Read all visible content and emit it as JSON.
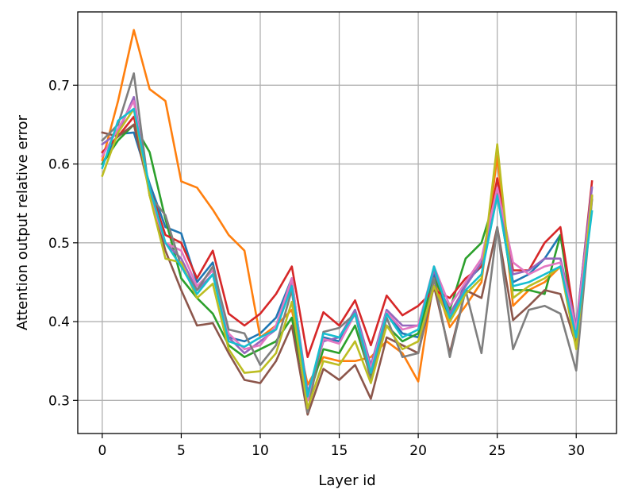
{
  "chart_data": {
    "type": "line",
    "title": "",
    "xlabel": "Layer id",
    "ylabel": "Attention output relative error",
    "xlim": [
      -1.55,
      32.55
    ],
    "ylim": [
      0.258,
      0.793
    ],
    "xticks": [
      0,
      5,
      10,
      15,
      20,
      25,
      30
    ],
    "yticks": [
      0.3,
      0.4,
      0.5,
      0.6,
      0.7
    ],
    "ytick_labels": [
      "0.3",
      "0.4",
      "0.5",
      "0.6",
      "0.7"
    ],
    "grid": true,
    "x": [
      0,
      1,
      2,
      3,
      4,
      5,
      6,
      7,
      8,
      9,
      10,
      11,
      12,
      13,
      14,
      15,
      16,
      17,
      18,
      19,
      20,
      21,
      22,
      23,
      24,
      25,
      26,
      27,
      28,
      29,
      30,
      31
    ],
    "series": [
      {
        "color": "#1f77b4",
        "values": [
          0.6,
          0.638,
          0.64,
          0.575,
          0.52,
          0.512,
          0.45,
          0.475,
          0.38,
          0.375,
          0.385,
          0.405,
          0.455,
          0.3,
          0.38,
          0.375,
          0.415,
          0.34,
          0.41,
          0.385,
          0.38,
          0.46,
          0.4,
          0.45,
          0.47,
          0.56,
          0.45,
          0.46,
          0.48,
          0.51,
          0.39,
          0.56
        ]
      },
      {
        "color": "#ff7f0e",
        "values": [
          0.605,
          0.68,
          0.77,
          0.695,
          0.68,
          0.578,
          0.57,
          0.542,
          0.51,
          0.49,
          0.38,
          0.395,
          0.415,
          0.32,
          0.355,
          0.35,
          0.35,
          0.355,
          0.375,
          0.36,
          0.324,
          0.455,
          0.393,
          0.42,
          0.45,
          0.61,
          0.42,
          0.44,
          0.45,
          0.47,
          0.37,
          0.555
        ]
      },
      {
        "color": "#2ca02c",
        "values": [
          0.6,
          0.63,
          0.65,
          0.615,
          0.53,
          0.455,
          0.43,
          0.41,
          0.37,
          0.355,
          0.365,
          0.375,
          0.405,
          0.3,
          0.365,
          0.36,
          0.395,
          0.33,
          0.395,
          0.375,
          0.385,
          0.455,
          0.415,
          0.48,
          0.5,
          0.565,
          0.44,
          0.44,
          0.435,
          0.51,
          0.38,
          0.56
        ]
      },
      {
        "color": "#d62728",
        "values": [
          0.615,
          0.635,
          0.66,
          0.57,
          0.51,
          0.5,
          0.455,
          0.49,
          0.41,
          0.395,
          0.41,
          0.435,
          0.47,
          0.355,
          0.412,
          0.395,
          0.427,
          0.37,
          0.433,
          0.408,
          0.42,
          0.44,
          0.43,
          0.455,
          0.47,
          0.582,
          0.465,
          0.465,
          0.5,
          0.52,
          0.39,
          0.578
        ]
      },
      {
        "color": "#9467bd",
        "values": [
          0.625,
          0.64,
          0.685,
          0.56,
          0.5,
          0.48,
          0.44,
          0.46,
          0.38,
          0.36,
          0.375,
          0.39,
          0.45,
          0.31,
          0.375,
          0.38,
          0.415,
          0.345,
          0.415,
          0.395,
          0.395,
          0.465,
          0.41,
          0.445,
          0.475,
          0.56,
          0.46,
          0.465,
          0.48,
          0.48,
          0.395,
          0.57
        ]
      },
      {
        "color": "#8c564b",
        "values": [
          0.64,
          0.635,
          0.65,
          0.565,
          0.49,
          0.44,
          0.395,
          0.398,
          0.36,
          0.326,
          0.322,
          0.35,
          0.395,
          0.282,
          0.34,
          0.326,
          0.345,
          0.302,
          0.38,
          0.37,
          0.36,
          0.445,
          0.36,
          0.44,
          0.43,
          0.52,
          0.402,
          0.42,
          0.44,
          0.435,
          0.37,
          0.56
        ]
      },
      {
        "color": "#e377c2",
        "values": [
          0.61,
          0.645,
          0.68,
          0.56,
          0.5,
          0.49,
          0.445,
          0.465,
          0.385,
          0.365,
          0.37,
          0.395,
          0.455,
          0.3,
          0.378,
          0.372,
          0.41,
          0.34,
          0.412,
          0.39,
          0.395,
          0.47,
          0.42,
          0.45,
          0.48,
          0.57,
          0.475,
          0.46,
          0.47,
          0.475,
          0.39,
          0.56
        ]
      },
      {
        "color": "#7f7f7f",
        "values": [
          0.63,
          0.65,
          0.715,
          0.56,
          0.535,
          0.47,
          0.44,
          0.47,
          0.39,
          0.385,
          0.345,
          0.37,
          0.44,
          0.285,
          0.387,
          0.392,
          0.41,
          0.325,
          0.405,
          0.355,
          0.36,
          0.455,
          0.355,
          0.44,
          0.36,
          0.52,
          0.365,
          0.415,
          0.42,
          0.41,
          0.338,
          0.555
        ]
      },
      {
        "color": "#bcbd22",
        "values": [
          0.585,
          0.64,
          0.67,
          0.56,
          0.48,
          0.475,
          0.43,
          0.448,
          0.365,
          0.335,
          0.337,
          0.36,
          0.425,
          0.29,
          0.35,
          0.345,
          0.375,
          0.322,
          0.395,
          0.365,
          0.375,
          0.445,
          0.4,
          0.435,
          0.455,
          0.625,
          0.43,
          0.445,
          0.455,
          0.47,
          0.365,
          0.56
        ]
      },
      {
        "color": "#17becf",
        "values": [
          0.595,
          0.655,
          0.67,
          0.57,
          0.5,
          0.47,
          0.435,
          0.46,
          0.375,
          0.368,
          0.38,
          0.39,
          0.445,
          0.305,
          0.385,
          0.38,
          0.41,
          0.335,
          0.41,
          0.38,
          0.39,
          0.47,
          0.405,
          0.44,
          0.46,
          0.56,
          0.445,
          0.45,
          0.46,
          0.47,
          0.38,
          0.54
        ]
      }
    ]
  }
}
